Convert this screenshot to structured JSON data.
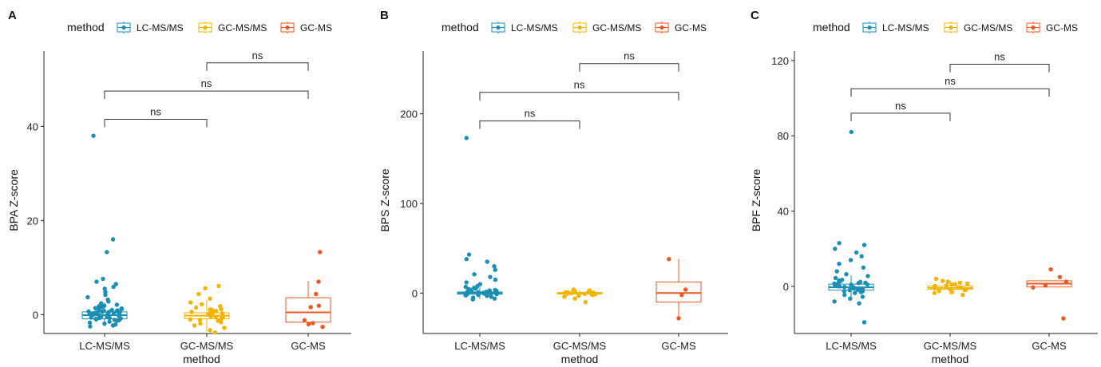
{
  "legend_title": "method",
  "methods": [
    "LC-MS/MS",
    "GC-MS/MS",
    "GC-MS"
  ],
  "colors": {
    "LC-MS/MS": "#1a8fb3",
    "GC-MS/MS": "#f2b400",
    "GC-MS": "#f0561f"
  },
  "chart_data": [
    {
      "panel": "A",
      "type": "box",
      "xlabel": "method",
      "ylabel": "BPA  Z-score",
      "ylim": [
        -4,
        56
      ],
      "yticks": [
        0,
        20,
        40
      ],
      "categories": [
        "LC-MS/MS",
        "GC-MS/MS",
        "GC-MS"
      ],
      "boxes": [
        {
          "category": "LC-MS/MS",
          "q1": -0.9,
          "median": -0.1,
          "q3": 0.6,
          "whisker_low": -2.5,
          "whisker_high": 2.6
        },
        {
          "category": "GC-MS/MS",
          "q1": -0.9,
          "median": -0.2,
          "q3": 0.4,
          "whisker_low": -3.6,
          "whisker_high": 3.2
        },
        {
          "category": "GC-MS",
          "q1": -1.6,
          "median": 0.5,
          "q3": 3.6,
          "whisker_low": -2.5,
          "whisker_high": 7.2
        }
      ],
      "points": [
        {
          "category": "LC-MS/MS",
          "values": [
            38.0,
            16.0,
            13.3,
            7.6,
            7.0,
            6.5,
            5.9,
            5.5,
            4.8,
            4.2,
            3.7,
            3.2,
            2.8,
            2.4,
            2.1,
            1.8,
            1.6,
            1.4,
            1.2,
            1.0,
            0.9,
            0.8,
            0.7,
            0.6,
            0.5,
            0.4,
            0.3,
            0.2,
            0.1,
            0.0,
            -0.1,
            -0.2,
            -0.3,
            -0.4,
            -0.5,
            -0.6,
            -0.7,
            -0.8,
            -0.9,
            -1.0,
            -1.1,
            -1.3,
            -1.5,
            -1.7,
            -1.9,
            -2.1,
            -2.3,
            -2.5,
            0.6,
            1.3,
            -0.3,
            0.8,
            -0.7,
            1.9,
            0.2,
            -1.2,
            0.5,
            1.1,
            -0.4,
            0.3
          ]
        },
        {
          "category": "GC-MS/MS",
          "values": [
            6.1,
            5.6,
            4.4,
            3.4,
            2.6,
            2.2,
            1.8,
            1.5,
            1.2,
            1.0,
            0.8,
            0.6,
            0.4,
            0.3,
            0.1,
            0.0,
            -0.2,
            -0.4,
            -0.6,
            -0.8,
            -1.0,
            -1.3,
            -1.6,
            -1.9,
            -2.3,
            -2.8,
            -3.3,
            -3.8,
            0.5,
            -0.5,
            1.1,
            -1.1
          ]
        },
        {
          "category": "GC-MS",
          "values": [
            13.3,
            7.0,
            4.4,
            1.9,
            1.6,
            -1.2,
            -1.8,
            -2.0,
            -2.6
          ]
        }
      ],
      "comparisons": [
        {
          "pair": [
            "LC-MS/MS",
            "GC-MS/MS"
          ],
          "label": "ns",
          "y": 41.5
        },
        {
          "pair": [
            "LC-MS/MS",
            "GC-MS"
          ],
          "label": "ns",
          "y": 47.5
        },
        {
          "pair": [
            "GC-MS/MS",
            "GC-MS"
          ],
          "label": "ns",
          "y": 53.5
        }
      ]
    },
    {
      "panel": "B",
      "type": "box",
      "xlabel": "method",
      "ylabel": "BPS  Z-score",
      "ylim": [
        -45,
        270
      ],
      "yticks": [
        0,
        100,
        200
      ],
      "categories": [
        "LC-MS/MS",
        "GC-MS/MS",
        "GC-MS"
      ],
      "boxes": [
        {
          "category": "LC-MS/MS",
          "q1": -1.2,
          "median": 0.2,
          "q3": 1.3,
          "whisker_low": -6.5,
          "whisker_high": 6.5
        },
        {
          "category": "GC-MS/MS",
          "q1": -1.0,
          "median": -0.2,
          "q3": 0.8,
          "whisker_low": -3.5,
          "whisker_high": 3.5
        },
        {
          "category": "GC-MS",
          "q1": -10.0,
          "median": 0.2,
          "q3": 12.5,
          "whisker_low": -28.0,
          "whisker_high": 38.0
        }
      ],
      "points": [
        {
          "category": "LC-MS/MS",
          "values": [
            173.0,
            43.0,
            38.0,
            35.0,
            30.0,
            26.0,
            21.0,
            18.0,
            15.0,
            12.0,
            10.0,
            8.0,
            7.0,
            6.0,
            5.0,
            4.0,
            3.5,
            3.0,
            2.5,
            2.0,
            1.5,
            1.0,
            0.5,
            0.0,
            -0.5,
            -1.0,
            -1.5,
            -2.0,
            -2.5,
            -3.0,
            -4.0,
            -5.0,
            -6.0,
            -7.0,
            2.2,
            -1.2,
            4.4,
            1.1,
            -2.2,
            0.3
          ]
        },
        {
          "category": "GC-MS/MS",
          "values": [
            4.0,
            3.0,
            2.2,
            1.6,
            1.0,
            0.5,
            0.0,
            -0.5,
            -1.0,
            -1.6,
            -2.2,
            -3.0,
            -4.0,
            -6.0,
            -10.0,
            0.8,
            -0.8,
            1.3
          ]
        },
        {
          "category": "GC-MS",
          "values": [
            38.0,
            4.0,
            -2.0,
            -28.0
          ]
        }
      ],
      "comparisons": [
        {
          "pair": [
            "LC-MS/MS",
            "GC-MS/MS"
          ],
          "label": "ns",
          "y": 192
        },
        {
          "pair": [
            "LC-MS/MS",
            "GC-MS"
          ],
          "label": "ns",
          "y": 224
        },
        {
          "pair": [
            "GC-MS/MS",
            "GC-MS"
          ],
          "label": "ns",
          "y": 256
        }
      ]
    },
    {
      "panel": "C",
      "type": "box",
      "xlabel": "method",
      "ylabel": "BPF  Z-score",
      "ylim": [
        -25,
        125
      ],
      "yticks": [
        0,
        40,
        80,
        120
      ],
      "categories": [
        "LC-MS/MS",
        "GC-MS/MS",
        "GC-MS"
      ],
      "boxes": [
        {
          "category": "LC-MS/MS",
          "q1": -2.0,
          "median": -0.5,
          "q3": 1.2,
          "whisker_low": -6.5,
          "whisker_high": 6.0
        },
        {
          "category": "GC-MS/MS",
          "q1": -1.5,
          "median": -0.8,
          "q3": 0.2,
          "whisker_low": -4.5,
          "whisker_high": 3.0
        },
        {
          "category": "GC-MS",
          "q1": -0.3,
          "median": 1.5,
          "q3": 3.0,
          "whisker_low": -0.5,
          "whisker_high": 3.0
        }
      ],
      "points": [
        {
          "category": "LC-MS/MS",
          "values": [
            82.0,
            23.0,
            22.0,
            20.0,
            18.0,
            16.0,
            14.0,
            12.0,
            10.0,
            8.0,
            6.5,
            5.5,
            4.5,
            3.5,
            2.8,
            2.0,
            1.5,
            1.0,
            0.5,
            0.0,
            -0.5,
            -1.0,
            -1.5,
            -2.0,
            -2.5,
            -3.0,
            -3.5,
            -4.5,
            -5.5,
            -6.5,
            -8.0,
            -9.0,
            -19.0,
            1.8,
            -0.8,
            0.2,
            2.4,
            -1.8,
            3.1,
            -2.6,
            0.9,
            -0.3,
            1.4,
            -1.2
          ]
        },
        {
          "category": "GC-MS/MS",
          "values": [
            4.0,
            3.0,
            2.5,
            2.0,
            1.5,
            1.0,
            0.5,
            0.0,
            -0.5,
            -1.0,
            -1.5,
            -2.0,
            -2.5,
            -3.0,
            -3.5,
            -4.5,
            0.3,
            -0.7,
            1.2,
            -1.8
          ]
        },
        {
          "category": "GC-MS",
          "values": [
            9.0,
            5.0,
            2.5,
            0.5,
            -0.5,
            -17.0
          ]
        }
      ],
      "comparisons": [
        {
          "pair": [
            "LC-MS/MS",
            "GC-MS/MS"
          ],
          "label": "ns",
          "y": 92
        },
        {
          "pair": [
            "LC-MS/MS",
            "GC-MS"
          ],
          "label": "ns",
          "y": 105
        },
        {
          "pair": [
            "GC-MS/MS",
            "GC-MS"
          ],
          "label": "ns",
          "y": 118
        }
      ]
    }
  ]
}
